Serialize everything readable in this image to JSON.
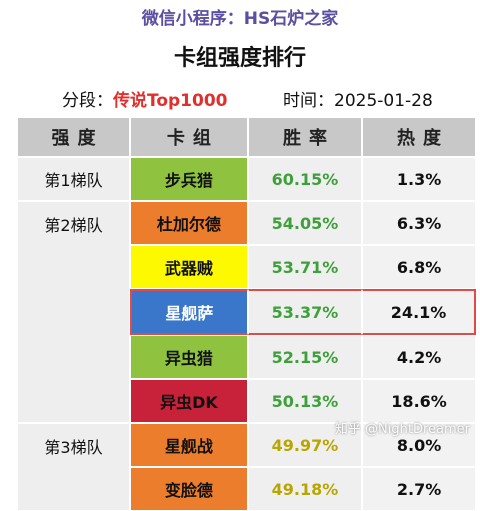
{
  "source": "微信小程序：HS石炉之家",
  "title": "卡组强度排行",
  "meta": {
    "segment_label": "分段：",
    "segment_value": "传说Top1000",
    "time_label": "时间：",
    "time_value": "2025-01-28"
  },
  "table": {
    "headers": [
      "强度",
      "卡组",
      "胜率",
      "热度"
    ],
    "rows": [
      {
        "tier": "第1梯队",
        "deck": "步兵猎",
        "deck_color": "#8fc23f",
        "winrate": "60.15%",
        "popularity": "1.3%"
      },
      {
        "tier": "第2梯队",
        "deck": "杜加尔德",
        "deck_color": "#ec7d2d",
        "winrate": "54.05%",
        "popularity": "6.3%"
      },
      {
        "tier": "",
        "deck": "武器贼",
        "deck_color": "#fdf900",
        "winrate": "53.71%",
        "popularity": "6.8%"
      },
      {
        "tier": "",
        "deck": "星舰萨",
        "deck_color": "#3a76c9",
        "winrate": "53.37%",
        "popularity": "24.1%",
        "highlight": true
      },
      {
        "tier": "",
        "deck": "异虫猎",
        "deck_color": "#8fc23f",
        "winrate": "52.15%",
        "popularity": "4.2%"
      },
      {
        "tier": "",
        "deck": "异虫DK",
        "deck_color": "#c8213a",
        "winrate": "50.13%",
        "popularity": "18.6%"
      },
      {
        "tier": "第3梯队",
        "deck": "星舰战",
        "deck_color": "#ec7d2d",
        "winrate": "49.97%",
        "popularity": "8.0%"
      },
      {
        "tier": "",
        "deck": "变脸德",
        "deck_color": "#ec7d2d",
        "winrate": "49.18%",
        "popularity": "2.7%"
      }
    ]
  },
  "watermark": "知乎 @NightDreamer"
}
